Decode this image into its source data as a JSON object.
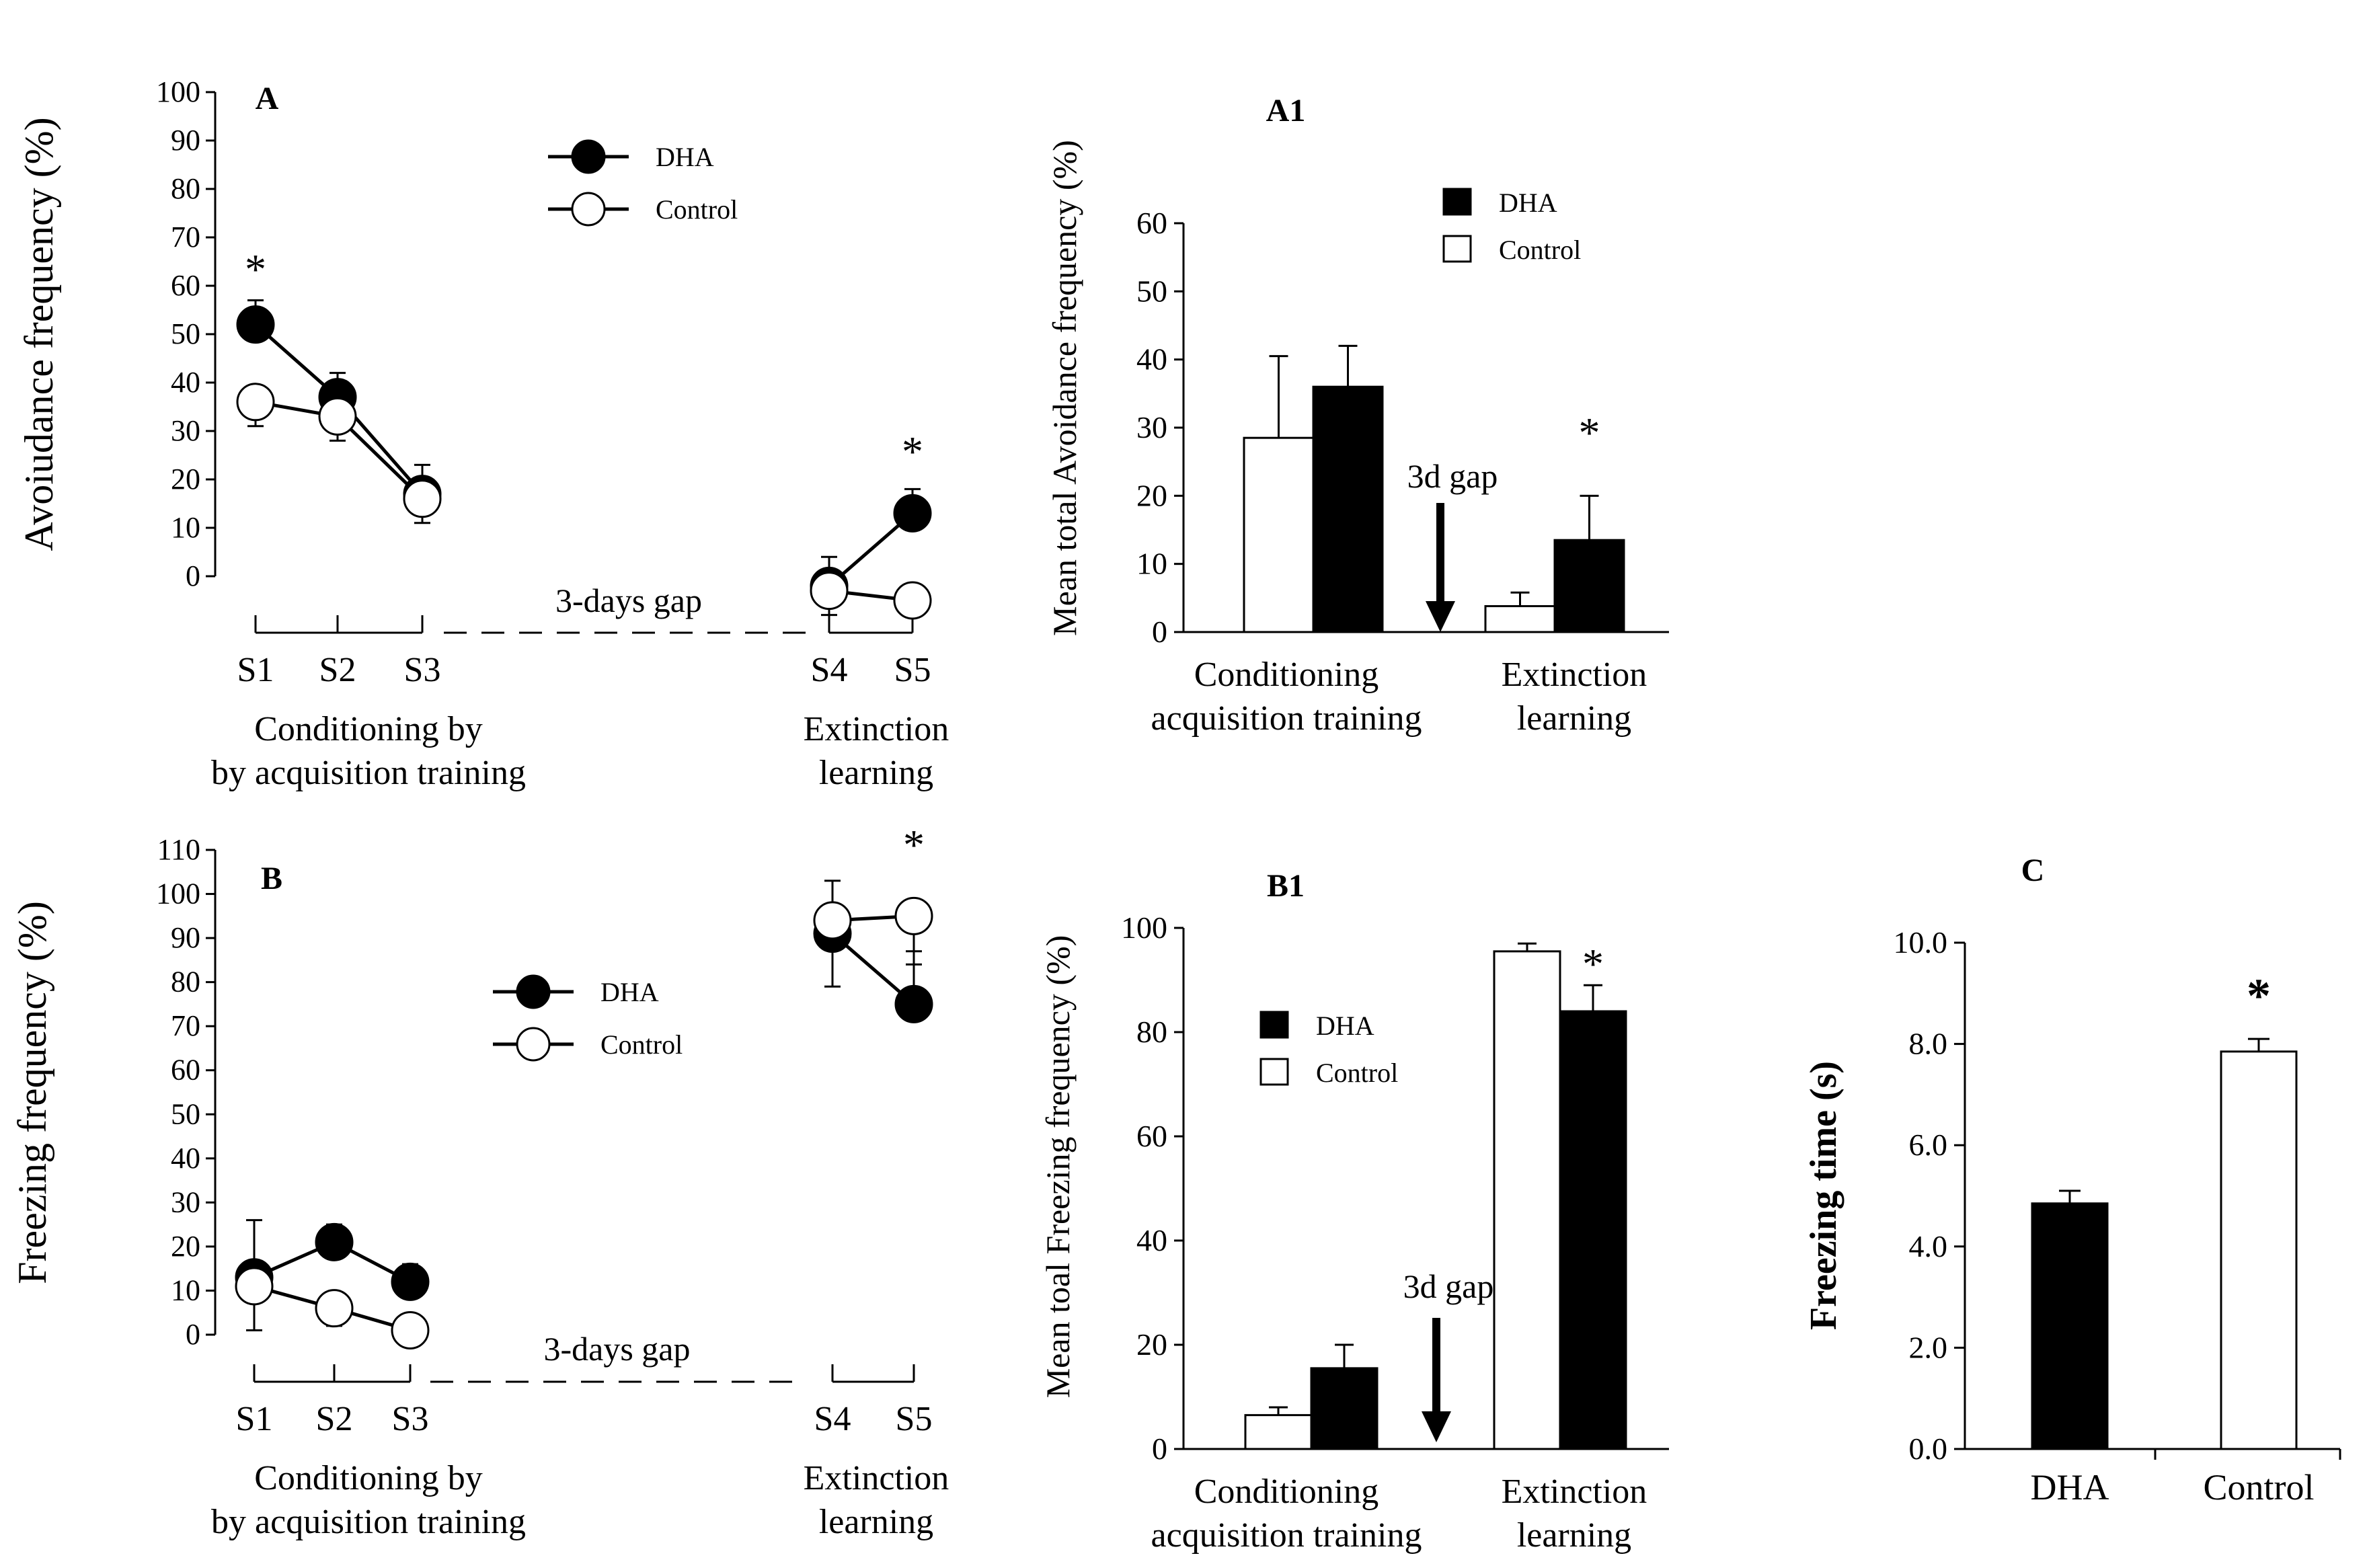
{
  "colors": {
    "dha": "#000000",
    "control": "#ffffff",
    "axis": "#000000"
  },
  "chart_data": [
    {
      "id": "A",
      "type": "line",
      "panel_label": "A",
      "ylabel": "Avoiudance frequency (%)",
      "ylim": [
        0,
        100
      ],
      "yticks": [
        0,
        10,
        20,
        30,
        40,
        50,
        60,
        70,
        80,
        90,
        100
      ],
      "categories": [
        "S1",
        "S2",
        "S3",
        "S4",
        "S5"
      ],
      "series": [
        {
          "name": "DHA",
          "values": [
            52,
            37,
            17,
            -2,
            13
          ],
          "errors": [
            5,
            5,
            6,
            6,
            5
          ]
        },
        {
          "name": "Control",
          "values": [
            36,
            33,
            16,
            -3,
            -5
          ],
          "errors": [
            5,
            5,
            5,
            5,
            3
          ]
        }
      ],
      "significance": [
        {
          "index": 0,
          "label": "*"
        },
        {
          "index": 4,
          "label": "*"
        }
      ],
      "gap_label": "3-days gap",
      "group_labels": [
        {
          "line1": "Conditioning by",
          "line2": "by acquisition training"
        },
        {
          "line1": "Extinction",
          "line2": "learning"
        }
      ],
      "legend": [
        "DHA",
        "Control"
      ]
    },
    {
      "id": "A1",
      "type": "bar",
      "panel_label": "A1",
      "ylabel": "Mean total Avoidance frequency (%)",
      "ylim": [
        0,
        60
      ],
      "yticks": [
        0,
        10,
        20,
        30,
        40,
        50,
        60
      ],
      "groups": [
        {
          "line1": "Conditioning",
          "line2": "acquisition training"
        },
        {
          "line1": "Extinction",
          "line2": "learning"
        }
      ],
      "series": [
        {
          "name": "Control",
          "values": [
            28.5,
            3.8
          ],
          "errors": [
            12,
            2
          ]
        },
        {
          "name": "DHA",
          "values": [
            36,
            13.5
          ],
          "errors": [
            6,
            6.5
          ]
        }
      ],
      "significance": [
        {
          "group": 1,
          "label": "*"
        }
      ],
      "gap_label": "3d gap",
      "legend": [
        "DHA",
        "Control"
      ]
    },
    {
      "id": "B",
      "type": "line",
      "panel_label": "B",
      "ylabel": "Freezing frequency (%)",
      "ylim": [
        0,
        110
      ],
      "yticks": [
        0,
        10,
        20,
        30,
        40,
        50,
        60,
        70,
        80,
        90,
        100,
        110
      ],
      "categories": [
        "S1",
        "S2",
        "S3",
        "S4",
        "S5"
      ],
      "series": [
        {
          "name": "DHA",
          "values": [
            13,
            21,
            12,
            91,
            75
          ],
          "errors": [
            13,
            4,
            4,
            12,
            12
          ]
        },
        {
          "name": "Control",
          "values": [
            11,
            6,
            1,
            94,
            95
          ],
          "errors": [
            10,
            4,
            3,
            15,
            11
          ]
        }
      ],
      "significance": [
        {
          "index": 4,
          "label": "*"
        }
      ],
      "gap_label": "3-days gap",
      "group_labels": [
        {
          "line1": "Conditioning by",
          "line2": "by acquisition training"
        },
        {
          "line1": "Extinction",
          "line2": "learning"
        }
      ],
      "legend": [
        "DHA",
        "Control"
      ]
    },
    {
      "id": "B1",
      "type": "bar",
      "panel_label": "B1",
      "ylabel": "Mean toal Freezing frequency (%)",
      "ylim": [
        0,
        100
      ],
      "yticks": [
        0,
        20,
        40,
        60,
        80,
        100
      ],
      "groups": [
        {
          "line1": "Conditioning",
          "line2": "acquisition training"
        },
        {
          "line1": "Extinction",
          "line2": "learning"
        }
      ],
      "series": [
        {
          "name": "Control",
          "values": [
            6.5,
            95.5
          ],
          "errors": [
            1.5,
            1.5
          ]
        },
        {
          "name": "DHA",
          "values": [
            15.5,
            84
          ],
          "errors": [
            4.5,
            5
          ]
        }
      ],
      "significance": [
        {
          "group": 1,
          "label": "*"
        }
      ],
      "gap_label": "3d gap",
      "legend": [
        "DHA",
        "Control"
      ]
    },
    {
      "id": "C",
      "type": "bar",
      "panel_label": "C",
      "ylabel": "Freezing time (s)",
      "ylim": [
        0,
        10
      ],
      "yticks": [
        "0.0",
        "2.0",
        "4.0",
        "6.0",
        "8.0",
        "10.0"
      ],
      "categories": [
        "DHA",
        "Control"
      ],
      "values": [
        4.85,
        7.85
      ],
      "errors": [
        0.25,
        0.25
      ],
      "significance": [
        {
          "index": 1,
          "label": "*"
        }
      ]
    }
  ]
}
